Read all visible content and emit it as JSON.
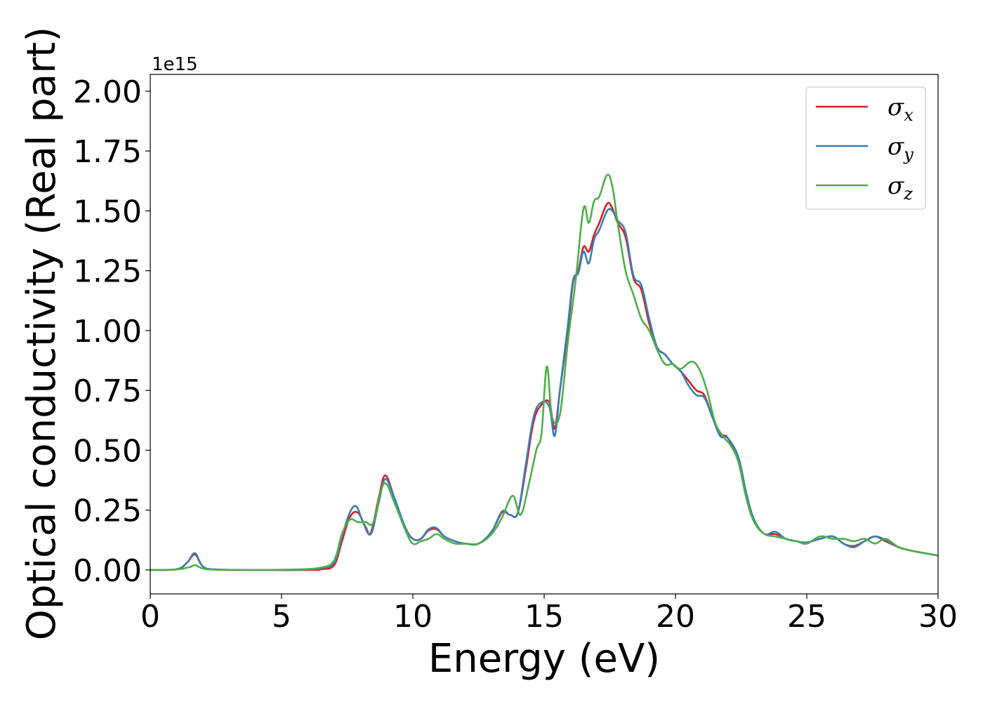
{
  "chart_data": {
    "type": "line",
    "title": "",
    "xlabel": "Energy (eV)",
    "ylabel": "Optical conductivity (Real part)",
    "y_offset_label": "1e15",
    "xlim": [
      0,
      30
    ],
    "ylim": [
      -0.1,
      2.07
    ],
    "x_ticks": [
      0,
      5,
      10,
      15,
      20,
      25,
      30
    ],
    "x_tick_labels": [
      "0",
      "5",
      "10",
      "15",
      "20",
      "25",
      "30"
    ],
    "y_ticks": [
      0,
      0.25,
      0.5,
      0.75,
      1.0,
      1.25,
      1.5,
      1.75,
      2.0
    ],
    "y_tick_labels": [
      "0.00",
      "0.25",
      "0.50",
      "0.75",
      "1.00",
      "1.25",
      "1.50",
      "1.75",
      "2.00"
    ],
    "grid": false,
    "legend_position": "top-right",
    "series": [
      {
        "name": "σx",
        "symbol": "σ",
        "subscript": "x",
        "color": "#e41a1c",
        "points": [
          [
            0,
            0
          ],
          [
            1,
            0.003
          ],
          [
            1.4,
            0.03
          ],
          [
            1.7,
            0.065
          ],
          [
            2.0,
            0.015
          ],
          [
            2.5,
            0.002
          ],
          [
            4,
            0
          ],
          [
            6,
            0
          ],
          [
            6.5,
            0.003
          ],
          [
            7,
            0.02
          ],
          [
            7.3,
            0.12
          ],
          [
            7.6,
            0.22
          ],
          [
            7.9,
            0.24
          ],
          [
            8.2,
            0.18
          ],
          [
            8.4,
            0.155
          ],
          [
            8.7,
            0.3
          ],
          [
            8.95,
            0.395
          ],
          [
            9.3,
            0.3
          ],
          [
            9.7,
            0.18
          ],
          [
            10,
            0.13
          ],
          [
            10.3,
            0.13
          ],
          [
            10.6,
            0.165
          ],
          [
            10.9,
            0.17
          ],
          [
            11.2,
            0.14
          ],
          [
            11.6,
            0.12
          ],
          [
            12,
            0.11
          ],
          [
            12.5,
            0.11
          ],
          [
            13,
            0.16
          ],
          [
            13.4,
            0.24
          ],
          [
            13.7,
            0.23
          ],
          [
            14,
            0.24
          ],
          [
            14.3,
            0.42
          ],
          [
            14.6,
            0.62
          ],
          [
            14.9,
            0.69
          ],
          [
            15.2,
            0.7
          ],
          [
            15.4,
            0.59
          ],
          [
            15.6,
            0.75
          ],
          [
            15.9,
            1.0
          ],
          [
            16.1,
            1.2
          ],
          [
            16.3,
            1.25
          ],
          [
            16.5,
            1.35
          ],
          [
            16.7,
            1.33
          ],
          [
            16.9,
            1.4
          ],
          [
            17.1,
            1.45
          ],
          [
            17.4,
            1.53
          ],
          [
            17.6,
            1.51
          ],
          [
            17.8,
            1.45
          ],
          [
            18.1,
            1.39
          ],
          [
            18.4,
            1.22
          ],
          [
            18.7,
            1.17
          ],
          [
            19,
            1.03
          ],
          [
            19.3,
            0.93
          ],
          [
            19.6,
            0.9
          ],
          [
            19.9,
            0.86
          ],
          [
            20.2,
            0.83
          ],
          [
            20.5,
            0.79
          ],
          [
            20.8,
            0.75
          ],
          [
            21.1,
            0.73
          ],
          [
            21.4,
            0.64
          ],
          [
            21.7,
            0.57
          ],
          [
            22.0,
            0.55
          ],
          [
            22.4,
            0.45
          ],
          [
            22.7,
            0.3
          ],
          [
            23,
            0.2
          ],
          [
            23.4,
            0.15
          ],
          [
            23.8,
            0.15
          ],
          [
            24.2,
            0.13
          ],
          [
            24.6,
            0.12
          ],
          [
            25,
            0.115
          ],
          [
            25.5,
            0.13
          ],
          [
            26,
            0.14
          ],
          [
            26.4,
            0.11
          ],
          [
            26.8,
            0.1
          ],
          [
            27.2,
            0.12
          ],
          [
            27.6,
            0.14
          ],
          [
            28,
            0.12
          ],
          [
            28.5,
            0.095
          ],
          [
            29,
            0.08
          ],
          [
            29.5,
            0.07
          ],
          [
            30,
            0.06
          ]
        ]
      },
      {
        "name": "σy",
        "symbol": "σ",
        "subscript": "y",
        "color": "#377eb8",
        "points": [
          [
            0,
            0
          ],
          [
            1,
            0.003
          ],
          [
            1.4,
            0.03
          ],
          [
            1.7,
            0.07
          ],
          [
            2.0,
            0.015
          ],
          [
            2.5,
            0.002
          ],
          [
            4,
            0
          ],
          [
            5.5,
            0
          ],
          [
            6.5,
            0.008
          ],
          [
            7,
            0.03
          ],
          [
            7.3,
            0.14
          ],
          [
            7.6,
            0.24
          ],
          [
            7.85,
            0.265
          ],
          [
            8.1,
            0.2
          ],
          [
            8.4,
            0.15
          ],
          [
            8.7,
            0.28
          ],
          [
            8.95,
            0.38
          ],
          [
            9.3,
            0.3
          ],
          [
            9.7,
            0.18
          ],
          [
            10,
            0.13
          ],
          [
            10.3,
            0.13
          ],
          [
            10.6,
            0.17
          ],
          [
            10.9,
            0.175
          ],
          [
            11.2,
            0.14
          ],
          [
            11.6,
            0.12
          ],
          [
            12,
            0.11
          ],
          [
            12.5,
            0.11
          ],
          [
            13,
            0.16
          ],
          [
            13.4,
            0.245
          ],
          [
            13.7,
            0.23
          ],
          [
            14,
            0.24
          ],
          [
            14.3,
            0.44
          ],
          [
            14.6,
            0.64
          ],
          [
            14.9,
            0.7
          ],
          [
            15.2,
            0.68
          ],
          [
            15.4,
            0.56
          ],
          [
            15.6,
            0.75
          ],
          [
            15.9,
            1.02
          ],
          [
            16.1,
            1.21
          ],
          [
            16.3,
            1.24
          ],
          [
            16.5,
            1.33
          ],
          [
            16.7,
            1.28
          ],
          [
            16.9,
            1.38
          ],
          [
            17.1,
            1.42
          ],
          [
            17.4,
            1.5
          ],
          [
            17.6,
            1.5
          ],
          [
            17.8,
            1.46
          ],
          [
            18.1,
            1.41
          ],
          [
            18.4,
            1.23
          ],
          [
            18.7,
            1.19
          ],
          [
            19,
            1.05
          ],
          [
            19.3,
            0.93
          ],
          [
            19.6,
            0.9
          ],
          [
            19.9,
            0.86
          ],
          [
            20.2,
            0.83
          ],
          [
            20.5,
            0.77
          ],
          [
            20.8,
            0.73
          ],
          [
            21.1,
            0.72
          ],
          [
            21.4,
            0.64
          ],
          [
            21.7,
            0.56
          ],
          [
            22.0,
            0.55
          ],
          [
            22.4,
            0.47
          ],
          [
            22.7,
            0.32
          ],
          [
            23,
            0.21
          ],
          [
            23.4,
            0.15
          ],
          [
            23.8,
            0.16
          ],
          [
            24.2,
            0.13
          ],
          [
            24.6,
            0.12
          ],
          [
            25,
            0.115
          ],
          [
            25.5,
            0.13
          ],
          [
            26,
            0.14
          ],
          [
            26.4,
            0.11
          ],
          [
            26.8,
            0.095
          ],
          [
            27.2,
            0.12
          ],
          [
            27.6,
            0.14
          ],
          [
            28,
            0.125
          ],
          [
            28.5,
            0.095
          ],
          [
            29,
            0.08
          ],
          [
            29.5,
            0.07
          ],
          [
            30,
            0.06
          ]
        ]
      },
      {
        "name": "σz",
        "symbol": "σ",
        "subscript": "z",
        "color": "#4daf4a",
        "points": [
          [
            0,
            0
          ],
          [
            1,
            0.002
          ],
          [
            1.5,
            0.012
          ],
          [
            1.7,
            0.02
          ],
          [
            2.0,
            0.006
          ],
          [
            2.5,
            0.001
          ],
          [
            4,
            0
          ],
          [
            5.5,
            0.002
          ],
          [
            6.5,
            0.01
          ],
          [
            7,
            0.04
          ],
          [
            7.3,
            0.15
          ],
          [
            7.6,
            0.21
          ],
          [
            7.9,
            0.2
          ],
          [
            8.2,
            0.2
          ],
          [
            8.5,
            0.2
          ],
          [
            8.9,
            0.36
          ],
          [
            9.3,
            0.28
          ],
          [
            9.7,
            0.17
          ],
          [
            10,
            0.11
          ],
          [
            10.3,
            0.12
          ],
          [
            10.6,
            0.13
          ],
          [
            10.9,
            0.15
          ],
          [
            11.2,
            0.13
          ],
          [
            11.6,
            0.11
          ],
          [
            12,
            0.11
          ],
          [
            12.5,
            0.11
          ],
          [
            13,
            0.15
          ],
          [
            13.4,
            0.22
          ],
          [
            13.8,
            0.31
          ],
          [
            14.1,
            0.23
          ],
          [
            14.4,
            0.35
          ],
          [
            14.7,
            0.5
          ],
          [
            14.9,
            0.57
          ],
          [
            15.1,
            0.85
          ],
          [
            15.3,
            0.64
          ],
          [
            15.6,
            0.65
          ],
          [
            15.9,
            0.95
          ],
          [
            16.2,
            1.21
          ],
          [
            16.5,
            1.51
          ],
          [
            16.7,
            1.45
          ],
          [
            16.9,
            1.54
          ],
          [
            17.1,
            1.56
          ],
          [
            17.4,
            1.65
          ],
          [
            17.6,
            1.6
          ],
          [
            17.8,
            1.45
          ],
          [
            18.1,
            1.25
          ],
          [
            18.4,
            1.15
          ],
          [
            18.7,
            1.05
          ],
          [
            19,
            1.0
          ],
          [
            19.3,
            0.92
          ],
          [
            19.6,
            0.86
          ],
          [
            19.9,
            0.86
          ],
          [
            20.2,
            0.84
          ],
          [
            20.6,
            0.87
          ],
          [
            20.9,
            0.84
          ],
          [
            21.2,
            0.75
          ],
          [
            21.5,
            0.62
          ],
          [
            21.8,
            0.56
          ],
          [
            22.1,
            0.52
          ],
          [
            22.4,
            0.45
          ],
          [
            22.7,
            0.3
          ],
          [
            23,
            0.2
          ],
          [
            23.4,
            0.15
          ],
          [
            23.8,
            0.14
          ],
          [
            24.2,
            0.13
          ],
          [
            24.6,
            0.12
          ],
          [
            25,
            0.11
          ],
          [
            25.5,
            0.14
          ],
          [
            26,
            0.13
          ],
          [
            26.4,
            0.13
          ],
          [
            26.8,
            0.12
          ],
          [
            27.2,
            0.13
          ],
          [
            27.6,
            0.11
          ],
          [
            28,
            0.13
          ],
          [
            28.5,
            0.095
          ],
          [
            29,
            0.08
          ],
          [
            29.5,
            0.07
          ],
          [
            30,
            0.06
          ]
        ]
      }
    ]
  }
}
